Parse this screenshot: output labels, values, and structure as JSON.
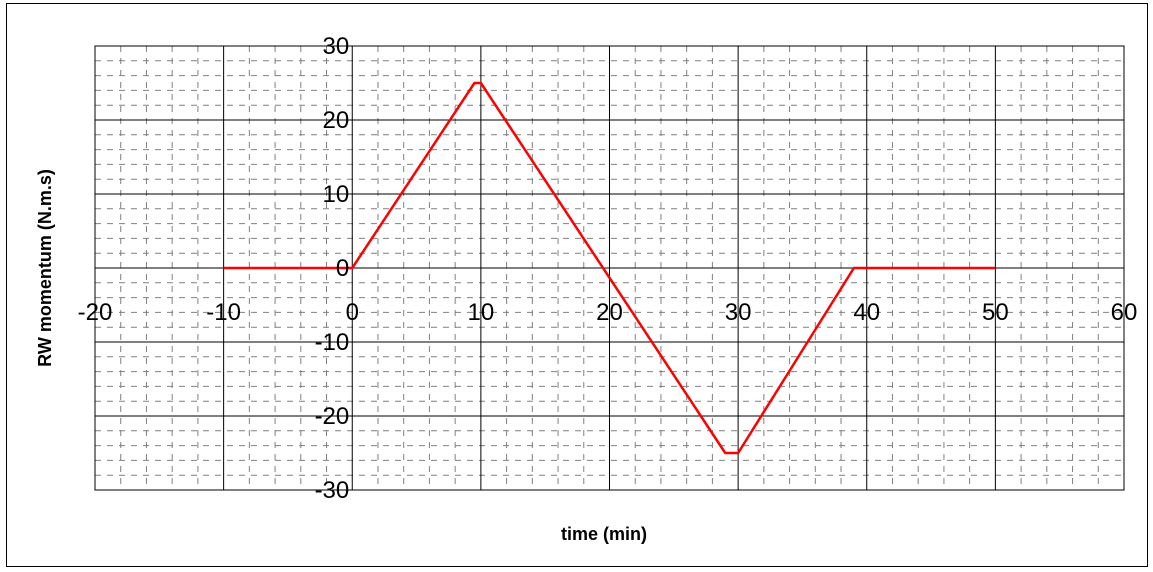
{
  "chart_data": {
    "type": "line",
    "title": "",
    "xlabel": "time (min)",
    "ylabel": "RW momentum (N.m.s)",
    "xlim": [
      -20,
      60
    ],
    "ylim": [
      -30,
      30
    ],
    "x_ticks": [
      -20,
      -10,
      0,
      10,
      20,
      30,
      40,
      50,
      60
    ],
    "y_ticks": [
      -30,
      -20,
      -10,
      0,
      10,
      20,
      30
    ],
    "x_tick_labels": [
      "-20",
      "-10",
      "0",
      "10",
      "20",
      "30",
      "40",
      "50",
      "60"
    ],
    "y_tick_labels": [
      "-30",
      "-20",
      "-10",
      "0",
      "10",
      "20",
      "30"
    ],
    "grid": true,
    "legend": "none",
    "series": [
      {
        "color": "#ff0000",
        "x": [
          -10,
          0,
          9.5,
          10,
          29,
          30,
          39,
          50
        ],
        "y": [
          0,
          0,
          25,
          25,
          -25,
          -25,
          0,
          0
        ]
      }
    ]
  }
}
